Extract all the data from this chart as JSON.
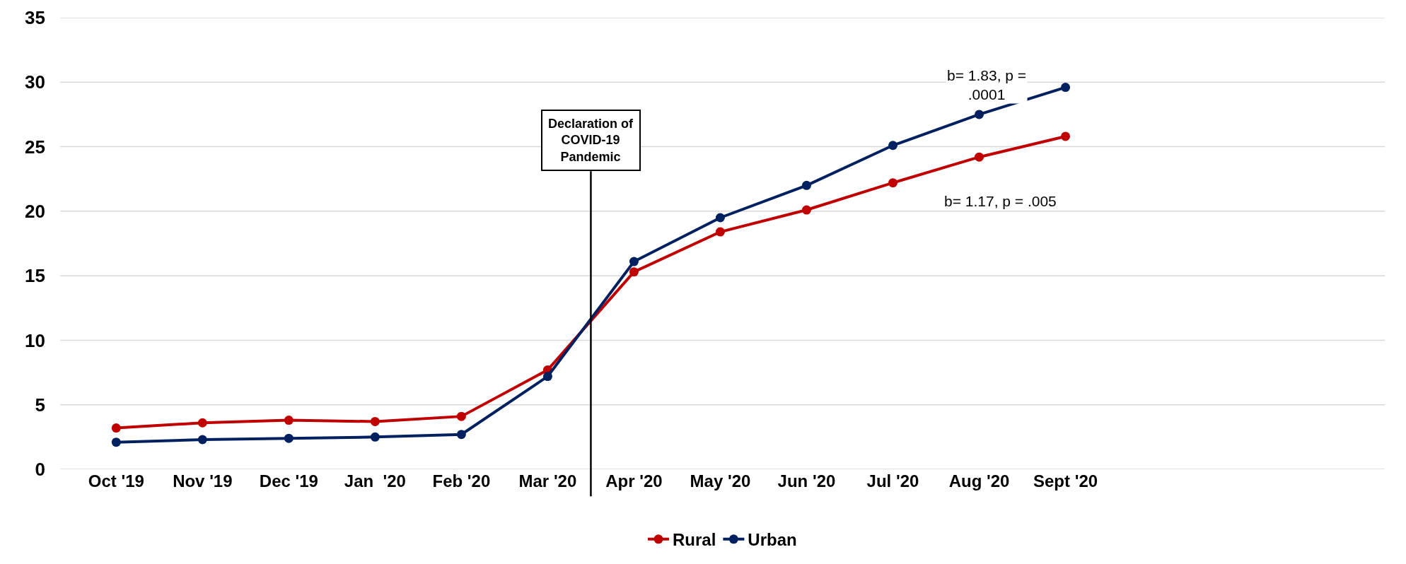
{
  "chart_data": {
    "type": "line",
    "categories": [
      "Oct '19",
      "Nov '19",
      "Dec '19",
      "Jan  '20",
      "Feb '20",
      "Mar '20",
      "Apr '20",
      "May '20",
      "Jun '20",
      "Jul '20",
      "Aug '20",
      "Sept '20"
    ],
    "series": [
      {
        "name": "Rural",
        "color": "#c00000",
        "values": [
          3.2,
          3.6,
          3.8,
          3.7,
          4.1,
          7.7,
          15.3,
          18.4,
          20.1,
          22.2,
          24.2,
          25.8
        ]
      },
      {
        "name": "Urban",
        "color": "#002060",
        "values": [
          2.1,
          2.3,
          2.4,
          2.5,
          2.7,
          7.2,
          16.1,
          19.5,
          22.0,
          25.1,
          27.5,
          29.6
        ]
      }
    ],
    "ylim": [
      0,
      35
    ],
    "yticks": [
      0,
      5,
      10,
      15,
      20,
      25,
      30,
      35
    ],
    "grid": "y",
    "legend": "bottom",
    "marker": "circle",
    "line_style": "solid",
    "annotations": [
      "Declaration of COVID-19 Pandemic",
      {
        "text": "b= 1.83, p = .0001",
        "x": "Aug '20",
        "y": 27.5
      },
      {
        "text": "b= 1.17, p = .005",
        "x": "Aug '20",
        "y": 24.2
      }
    ]
  }
}
